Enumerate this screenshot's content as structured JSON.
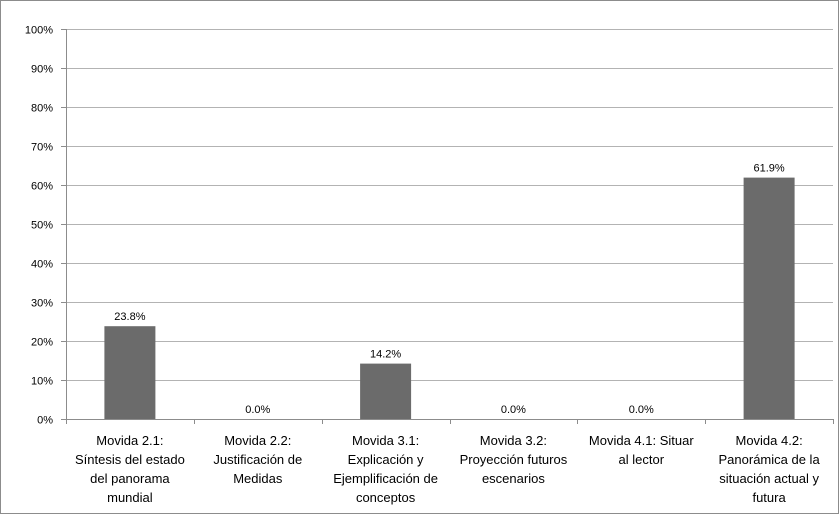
{
  "chart_data": {
    "type": "bar",
    "categories": [
      [
        "Movida 2.1:",
        "Síntesis del estado",
        "del panorama",
        "mundial"
      ],
      [
        "Movida 2.2:",
        "Justificación de",
        "Medidas"
      ],
      [
        "Movida 3.1:",
        "Explicación y",
        "Ejemplificación de",
        "conceptos"
      ],
      [
        "Movida 3.2:",
        "Proyección futuros",
        "escenarios"
      ],
      [
        "Movida 4.1: Situar",
        "al lector"
      ],
      [
        "Movida 4.2:",
        "Panorámica de la",
        "situación actual y",
        "futura"
      ]
    ],
    "values": [
      23.8,
      0.0,
      14.2,
      0.0,
      0.0,
      61.9
    ],
    "data_labels": [
      "23.8%",
      "0.0%",
      "14.2%",
      "0.0%",
      "0.0%",
      "61.9%"
    ],
    "ylim": [
      0,
      100
    ],
    "yticks": [
      0,
      10,
      20,
      30,
      40,
      50,
      60,
      70,
      80,
      90,
      100
    ],
    "ytick_labels": [
      "0%",
      "10%",
      "20%",
      "30%",
      "40%",
      "50%",
      "60%",
      "70%",
      "80%",
      "90%",
      "100%"
    ],
    "bar_color": "#6b6b6b",
    "grid": true,
    "legend": false,
    "title": "",
    "xlabel": "",
    "ylabel": ""
  }
}
